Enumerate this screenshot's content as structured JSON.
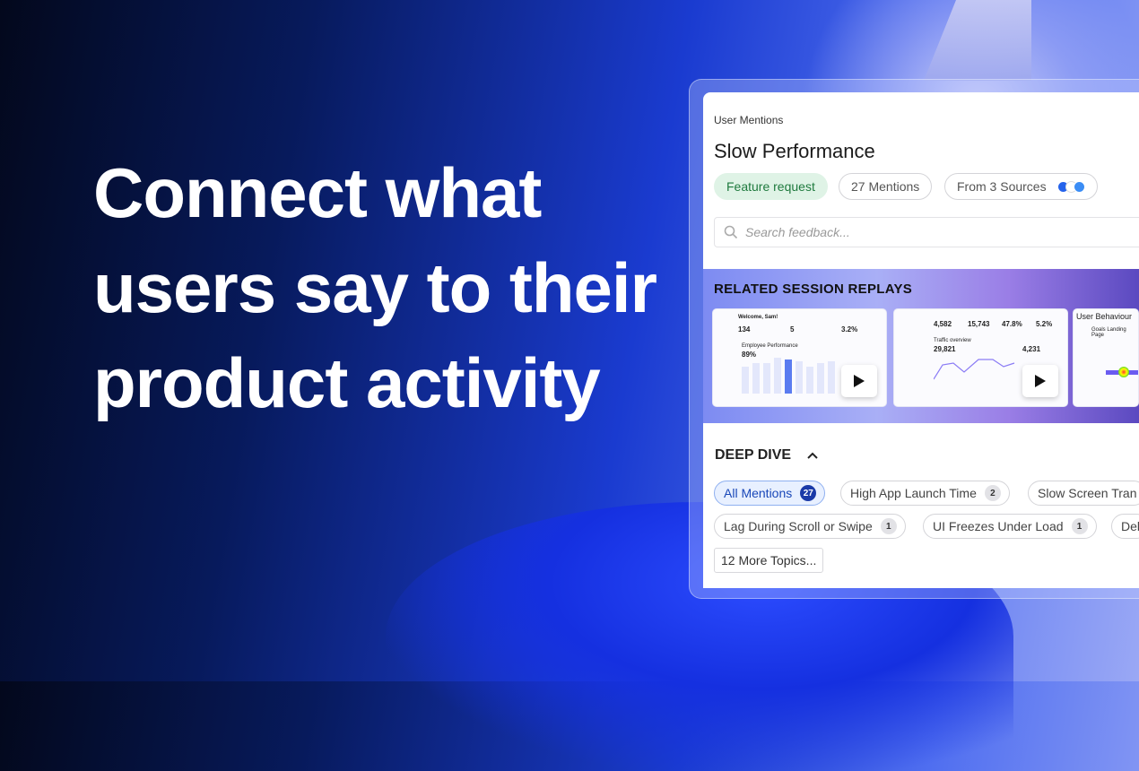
{
  "headline": "Connect what users say to their product activity",
  "panel": {
    "label": "User Mentions",
    "title": "Slow Performance",
    "tags": [
      "Feature request",
      "27 Mentions",
      "From 3 Sources"
    ],
    "source_icons": [
      "app-store-icon",
      "zendesk-icon",
      "app-store-icon"
    ],
    "search_placeholder": "Search feedback..."
  },
  "replays": {
    "title": "RELATED SESSION REPLAYS",
    "thumbs": [
      {
        "heading": "Welcome, Sam!",
        "stats": [
          "134",
          "5",
          "3.2%"
        ],
        "metric": "89%",
        "sub": "Employee Performance"
      },
      {
        "stats": [
          "4,582",
          "15,743",
          "47.8%",
          "5.2%"
        ],
        "metric": "29,821",
        "metric2": "4,231",
        "sub": "Traffic overview"
      },
      {
        "heading": "User Behaviour",
        "sub": "Goals Landing Page"
      }
    ]
  },
  "deep_dive": {
    "title": "DEEP DIVE",
    "chips": [
      {
        "label": "All Mentions",
        "count": "27",
        "active": true
      },
      {
        "label": "High App Launch Time",
        "count": "2"
      },
      {
        "label": "Slow Screen Tran"
      },
      {
        "label": "Lag During Scroll or Swipe",
        "count": "1"
      },
      {
        "label": "UI Freezes Under Load",
        "count": "1"
      },
      {
        "label": "Del"
      }
    ],
    "more": "12 More Topics..."
  },
  "colors": {
    "accent": "#1a3aa8",
    "green_tag": "#dff3e6"
  }
}
